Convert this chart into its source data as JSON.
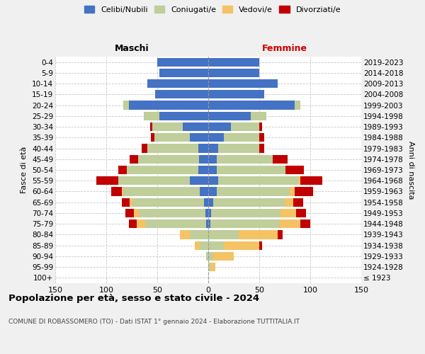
{
  "age_groups": [
    "100+",
    "95-99",
    "90-94",
    "85-89",
    "80-84",
    "75-79",
    "70-74",
    "65-69",
    "60-64",
    "55-59",
    "50-54",
    "45-49",
    "40-44",
    "35-39",
    "30-34",
    "25-29",
    "20-24",
    "15-19",
    "10-14",
    "5-9",
    "0-4"
  ],
  "birth_years": [
    "≤ 1923",
    "1924-1928",
    "1929-1933",
    "1934-1938",
    "1939-1943",
    "1944-1948",
    "1949-1953",
    "1954-1958",
    "1959-1963",
    "1964-1968",
    "1969-1973",
    "1974-1978",
    "1979-1983",
    "1984-1988",
    "1989-1993",
    "1994-1998",
    "1999-2003",
    "2004-2008",
    "2009-2013",
    "2014-2018",
    "2019-2023"
  ],
  "male": {
    "celibi": [
      0,
      0,
      0,
      0,
      0,
      2,
      3,
      4,
      8,
      18,
      10,
      9,
      10,
      18,
      25,
      48,
      78,
      52,
      60,
      48,
      50
    ],
    "coniugati": [
      0,
      0,
      2,
      8,
      18,
      60,
      65,
      70,
      75,
      70,
      70,
      60,
      50,
      35,
      30,
      15,
      5,
      0,
      0,
      0,
      0
    ],
    "vedovi": [
      0,
      0,
      0,
      5,
      10,
      8,
      5,
      3,
      2,
      0,
      0,
      0,
      0,
      0,
      0,
      0,
      0,
      0,
      0,
      0,
      0
    ],
    "divorziati": [
      0,
      0,
      0,
      0,
      0,
      8,
      8,
      8,
      10,
      22,
      8,
      8,
      5,
      3,
      2,
      0,
      0,
      0,
      0,
      0,
      0
    ]
  },
  "female": {
    "nubili": [
      0,
      0,
      0,
      0,
      0,
      2,
      3,
      5,
      8,
      10,
      8,
      8,
      10,
      15,
      22,
      42,
      85,
      55,
      68,
      50,
      50
    ],
    "coniugate": [
      0,
      2,
      5,
      15,
      30,
      68,
      68,
      70,
      72,
      78,
      68,
      55,
      40,
      35,
      28,
      15,
      5,
      0,
      0,
      0,
      0
    ],
    "vedove": [
      0,
      5,
      20,
      35,
      38,
      20,
      15,
      8,
      5,
      2,
      0,
      0,
      0,
      0,
      0,
      0,
      0,
      0,
      0,
      0,
      0
    ],
    "divorziate": [
      0,
      0,
      0,
      3,
      5,
      10,
      10,
      10,
      18,
      22,
      18,
      15,
      5,
      5,
      3,
      0,
      0,
      0,
      0,
      0,
      0
    ]
  },
  "colors": {
    "celibi": "#4472C4",
    "coniugati": "#BFCE9A",
    "vedovi": "#F5C264",
    "divorziati": "#C00000"
  },
  "xlim": 150,
  "title": "Popolazione per età, sesso e stato civile - 2024",
  "subtitle": "COMUNE DI ROBASSOMERO (TO) - Dati ISTAT 1° gennaio 2024 - Elaborazione TUTTITALIA.IT",
  "ylabel_left": "Fasce di età",
  "ylabel_right": "Anni di nascita",
  "xlabel_left": "Maschi",
  "xlabel_right": "Femmine",
  "bg_color": "#f0f0f0",
  "plot_bg": "#ffffff"
}
